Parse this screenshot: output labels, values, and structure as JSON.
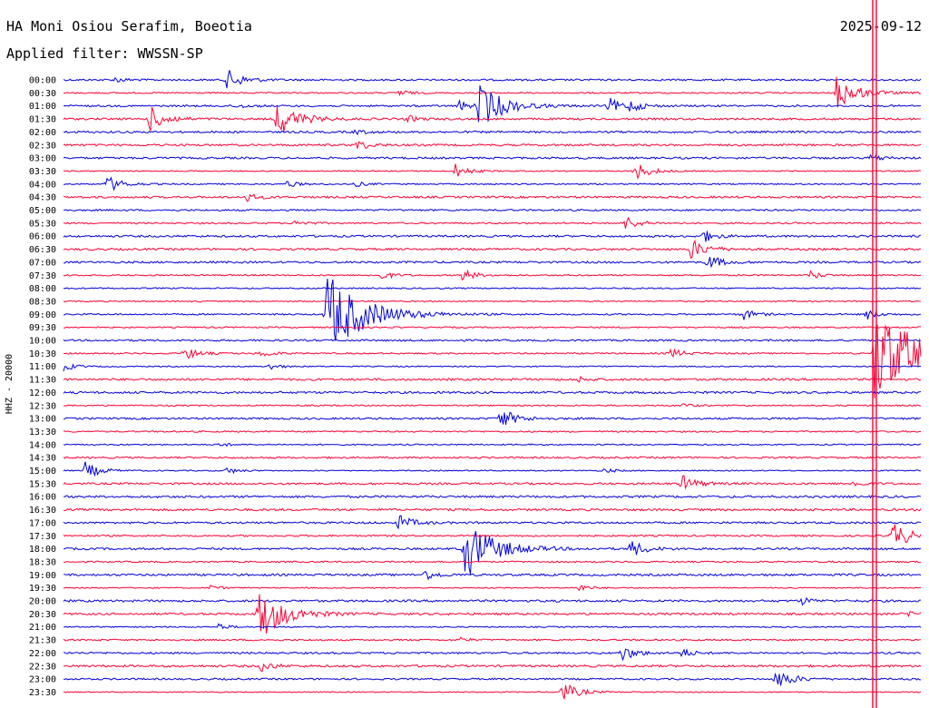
{
  "header": {
    "station": "HA Moni Osiou Serafim, Boeotia",
    "date": "2025-09-12",
    "filter": "Applied filter: WWSSN-SP"
  },
  "chart_data": {
    "type": "line",
    "subtype": "helicorder",
    "ylabel": "HHZ - 20000",
    "row_labels": [
      "00:00",
      "00:30",
      "01:00",
      "01:30",
      "02:00",
      "02:30",
      "03:00",
      "03:30",
      "04:00",
      "04:30",
      "05:00",
      "05:30",
      "06:00",
      "06:30",
      "07:00",
      "07:30",
      "08:00",
      "08:30",
      "09:00",
      "09:30",
      "10:00",
      "10:30",
      "11:00",
      "11:30",
      "12:00",
      "12:30",
      "13:00",
      "13:30",
      "14:00",
      "14:30",
      "15:00",
      "15:30",
      "16:00",
      "16:30",
      "17:00",
      "17:30",
      "18:00",
      "18:30",
      "19:00",
      "19:30",
      "20:00",
      "20:30",
      "21:00",
      "21:30",
      "22:00",
      "22:30",
      "23:00",
      "23:30"
    ],
    "row_minutes": 30,
    "colors": {
      "even_rows": "#0000dd",
      "odd_rows": "#ff0033"
    },
    "current_time_marker_fraction": 0.945,
    "events": [
      {
        "row": 0,
        "pos": 0.19,
        "amp": 12
      },
      {
        "row": 0,
        "pos": 0.06,
        "amp": 3
      },
      {
        "row": 1,
        "pos": 0.9,
        "amp": 20
      },
      {
        "row": 1,
        "pos": 0.39,
        "amp": 4
      },
      {
        "row": 2,
        "pos": 0.484,
        "amp": 26
      },
      {
        "row": 2,
        "pos": 0.46,
        "amp": 6
      },
      {
        "row": 2,
        "pos": 0.635,
        "amp": 9
      },
      {
        "row": 2,
        "pos": 0.66,
        "amp": 6
      },
      {
        "row": 2,
        "pos": 0.2,
        "amp": 3
      },
      {
        "row": 3,
        "pos": 0.1,
        "amp": 14
      },
      {
        "row": 3,
        "pos": 0.248,
        "amp": 20
      },
      {
        "row": 3,
        "pos": 0.4,
        "amp": 4
      },
      {
        "row": 4,
        "pos": 0.34,
        "amp": 3
      },
      {
        "row": 5,
        "pos": 0.342,
        "amp": 6
      },
      {
        "row": 6,
        "pos": 0.94,
        "amp": 5
      },
      {
        "row": 7,
        "pos": 0.456,
        "amp": 8
      },
      {
        "row": 7,
        "pos": 0.665,
        "amp": 11
      },
      {
        "row": 8,
        "pos": 0.05,
        "amp": 10
      },
      {
        "row": 8,
        "pos": 0.26,
        "amp": 4
      },
      {
        "row": 8,
        "pos": 0.34,
        "amp": 3
      },
      {
        "row": 9,
        "pos": 0.212,
        "amp": 5
      },
      {
        "row": 11,
        "pos": 0.655,
        "amp": 8
      },
      {
        "row": 11,
        "pos": 0.27,
        "amp": 4
      },
      {
        "row": 12,
        "pos": 0.745,
        "amp": 7
      },
      {
        "row": 13,
        "pos": 0.73,
        "amp": 12
      },
      {
        "row": 14,
        "pos": 0.75,
        "amp": 9
      },
      {
        "row": 15,
        "pos": 0.37,
        "amp": 5
      },
      {
        "row": 15,
        "pos": 0.465,
        "amp": 7
      },
      {
        "row": 15,
        "pos": 0.87,
        "amp": 5
      },
      {
        "row": 18,
        "pos": 0.306,
        "amp": 48
      },
      {
        "row": 18,
        "pos": 0.79,
        "amp": 7
      },
      {
        "row": 18,
        "pos": 0.935,
        "amp": 6
      },
      {
        "row": 21,
        "pos": 0.14,
        "amp": 8
      },
      {
        "row": 21,
        "pos": 0.23,
        "amp": 5
      },
      {
        "row": 21,
        "pos": 0.705,
        "amp": 7
      },
      {
        "row": 21,
        "pos": 0.945,
        "amp": 55
      },
      {
        "row": 22,
        "pos": 0.0,
        "amp": 5
      },
      {
        "row": 22,
        "pos": 0.24,
        "amp": 4
      },
      {
        "row": 23,
        "pos": 0.6,
        "amp": 3
      },
      {
        "row": 25,
        "pos": 0.72,
        "amp": 3
      },
      {
        "row": 26,
        "pos": 0.508,
        "amp": 12
      },
      {
        "row": 28,
        "pos": 0.18,
        "amp": 3
      },
      {
        "row": 30,
        "pos": 0.025,
        "amp": 10
      },
      {
        "row": 30,
        "pos": 0.19,
        "amp": 4
      },
      {
        "row": 30,
        "pos": 0.63,
        "amp": 3
      },
      {
        "row": 31,
        "pos": 0.72,
        "amp": 10
      },
      {
        "row": 31,
        "pos": 0.92,
        "amp": 4
      },
      {
        "row": 34,
        "pos": 0.39,
        "amp": 9
      },
      {
        "row": 35,
        "pos": 0.965,
        "amp": 16
      },
      {
        "row": 36,
        "pos": 0.467,
        "amp": 34
      },
      {
        "row": 36,
        "pos": 0.66,
        "amp": 10
      },
      {
        "row": 38,
        "pos": 0.42,
        "amp": 6
      },
      {
        "row": 39,
        "pos": 0.6,
        "amp": 4
      },
      {
        "row": 39,
        "pos": 0.17,
        "amp": 3
      },
      {
        "row": 40,
        "pos": 0.86,
        "amp": 4
      },
      {
        "row": 41,
        "pos": 0.227,
        "amp": 30
      },
      {
        "row": 41,
        "pos": 0.985,
        "amp": 4
      },
      {
        "row": 42,
        "pos": 0.18,
        "amp": 4
      },
      {
        "row": 43,
        "pos": 0.46,
        "amp": 3
      },
      {
        "row": 44,
        "pos": 0.65,
        "amp": 9
      },
      {
        "row": 44,
        "pos": 0.72,
        "amp": 5
      },
      {
        "row": 45,
        "pos": 0.23,
        "amp": 6
      },
      {
        "row": 46,
        "pos": 0.83,
        "amp": 12
      },
      {
        "row": 47,
        "pos": 0.58,
        "amp": 12
      }
    ]
  }
}
